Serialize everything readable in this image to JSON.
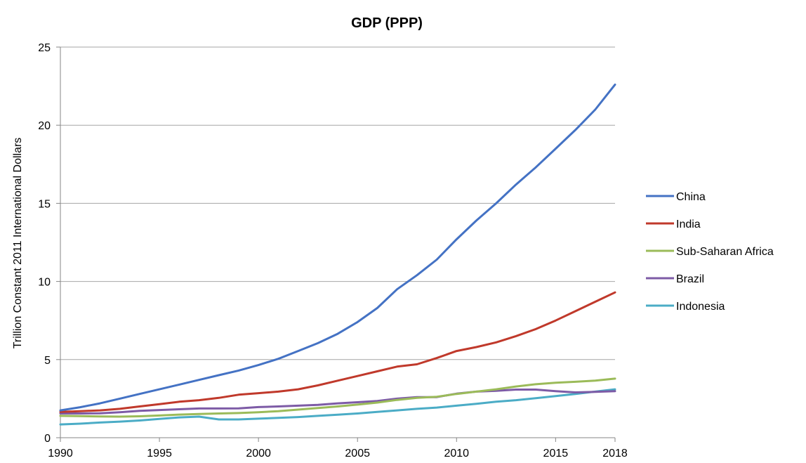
{
  "chart_data": {
    "type": "line",
    "title": "GDP (PPP)",
    "ylabel": "Trillion Constant 2011 International Dollars",
    "xlabel": "",
    "xlim": [
      1990,
      2018
    ],
    "ylim": [
      0,
      25
    ],
    "x_ticks": [
      1990,
      1995,
      2000,
      2005,
      2010,
      2015,
      2018
    ],
    "y_ticks": [
      0,
      5,
      10,
      15,
      20,
      25
    ],
    "grid": "horizontal",
    "legend_position": "right",
    "x": [
      1990,
      1991,
      1992,
      1993,
      1994,
      1995,
      1996,
      1997,
      1998,
      1999,
      2000,
      2001,
      2002,
      2003,
      2004,
      2005,
      2006,
      2007,
      2008,
      2009,
      2010,
      2011,
      2012,
      2013,
      2014,
      2015,
      2016,
      2017,
      2018
    ],
    "series": [
      {
        "name": "China",
        "color": "#4472C4",
        "values": [
          1.75,
          1.95,
          2.2,
          2.5,
          2.8,
          3.1,
          3.4,
          3.7,
          4.0,
          4.3,
          4.65,
          5.05,
          5.55,
          6.05,
          6.65,
          7.4,
          8.3,
          9.5,
          10.4,
          11.4,
          12.7,
          13.9,
          15.0,
          16.2,
          17.3,
          18.5,
          19.7,
          21.0,
          22.6
        ]
      },
      {
        "name": "India",
        "color": "#C0392B",
        "values": [
          1.65,
          1.7,
          1.75,
          1.85,
          2.0,
          2.15,
          2.3,
          2.4,
          2.55,
          2.75,
          2.85,
          2.95,
          3.1,
          3.35,
          3.65,
          3.95,
          4.25,
          4.55,
          4.7,
          5.1,
          5.55,
          5.8,
          6.1,
          6.5,
          6.95,
          7.5,
          8.1,
          8.7,
          9.3
        ]
      },
      {
        "name": "Sub-Saharan Africa",
        "color": "#9BBB59",
        "values": [
          1.4,
          1.38,
          1.36,
          1.35,
          1.37,
          1.42,
          1.48,
          1.52,
          1.55,
          1.58,
          1.63,
          1.7,
          1.8,
          1.9,
          2.0,
          2.12,
          2.25,
          2.42,
          2.55,
          2.62,
          2.8,
          2.95,
          3.1,
          3.28,
          3.42,
          3.52,
          3.58,
          3.65,
          3.78
        ]
      },
      {
        "name": "Brazil",
        "color": "#7D5BA6",
        "values": [
          1.55,
          1.55,
          1.56,
          1.63,
          1.72,
          1.77,
          1.82,
          1.87,
          1.87,
          1.88,
          1.96,
          2.0,
          2.05,
          2.1,
          2.2,
          2.27,
          2.35,
          2.5,
          2.6,
          2.6,
          2.82,
          2.95,
          3.0,
          3.08,
          3.08,
          2.98,
          2.9,
          2.93,
          2.98
        ]
      },
      {
        "name": "Indonesia",
        "color": "#4BACC6",
        "values": [
          0.85,
          0.9,
          0.97,
          1.03,
          1.1,
          1.2,
          1.3,
          1.35,
          1.17,
          1.17,
          1.22,
          1.27,
          1.32,
          1.4,
          1.47,
          1.55,
          1.65,
          1.75,
          1.85,
          1.93,
          2.05,
          2.17,
          2.3,
          2.4,
          2.53,
          2.66,
          2.8,
          2.95,
          3.1
        ]
      }
    ]
  }
}
